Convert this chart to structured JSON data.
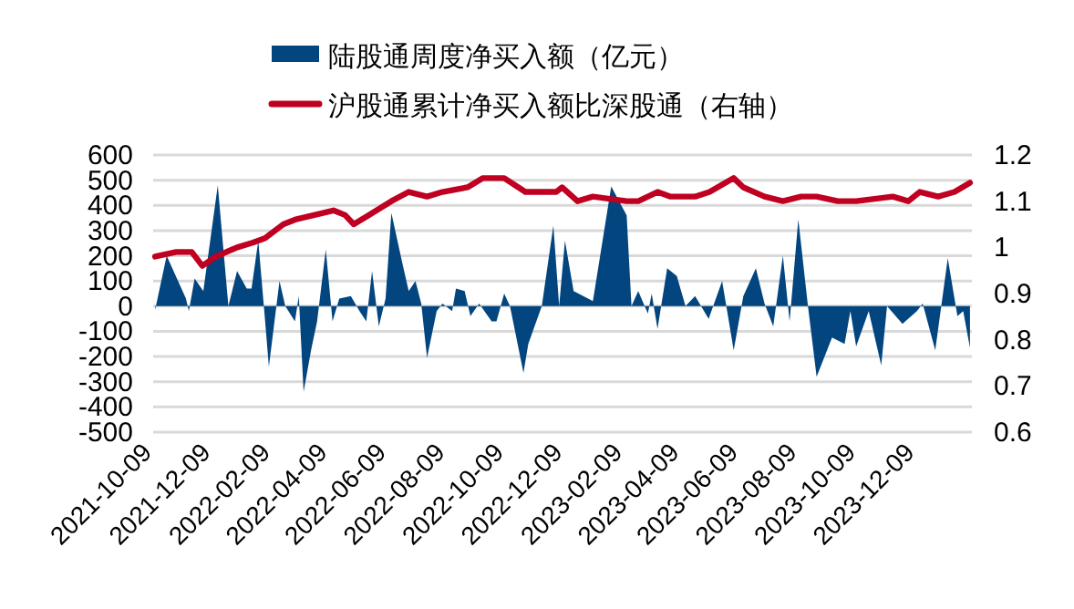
{
  "chart_data": {
    "type": "area",
    "legend": "top",
    "grid": "y",
    "line_style": "solid",
    "marker": "none",
    "xlim": [
      "2021-10-09",
      "2024-02-05"
    ],
    "xticks": [
      "2021-10-09",
      "2021-12-09",
      "2022-02-09",
      "2022-04-09",
      "2022-06-09",
      "2022-08-09",
      "2022-10-09",
      "2022-12-09",
      "2023-02-09",
      "2023-04-09",
      "2023-06-09",
      "2023-08-09",
      "2023-10-09",
      "2023-12-09"
    ],
    "ylim": [
      -500,
      600
    ],
    "yticks": [
      -500,
      -400,
      -300,
      -200,
      -100,
      0,
      100,
      200,
      300,
      400,
      500,
      600
    ],
    "y2lim": [
      0.6,
      1.2
    ],
    "y2ticks": [
      0.6,
      0.7,
      0.8,
      0.9,
      {
        "value": 1,
        "label": "1"
      },
      1.1,
      1.2
    ],
    "series": [
      {
        "name": "陆股通周度净买入额（亿元）",
        "color": "#02457f",
        "x": [
          "2021-10-11",
          "2021-10-23",
          "2021-11-12",
          "2021-11-15",
          "2021-11-21",
          "2021-11-30",
          "2021-12-15",
          "2021-12-26",
          "2022-01-04",
          "2022-01-14",
          "2022-01-19",
          "2022-01-26",
          "2022-02-01",
          "2022-02-06",
          "2022-02-17",
          "2022-02-23",
          "2022-03-05",
          "2022-03-09",
          "2022-03-14",
          "2022-03-22",
          "2022-03-28",
          "2022-04-06",
          "2022-04-13",
          "2022-04-20",
          "2022-05-02",
          "2022-05-11",
          "2022-05-18",
          "2022-05-24",
          "2022-05-31",
          "2022-06-07",
          "2022-06-13",
          "2022-06-25",
          "2022-07-01",
          "2022-07-08",
          "2022-07-14",
          "2022-07-20",
          "2022-07-30",
          "2022-08-05",
          "2022-08-15",
          "2022-08-19",
          "2022-08-28",
          "2022-09-03",
          "2022-09-12",
          "2022-09-25",
          "2022-09-30",
          "2022-10-08",
          "2022-10-14",
          "2022-10-28",
          "2022-11-02",
          "2022-11-16",
          "2022-11-28",
          "2022-12-04",
          "2022-12-10",
          "2022-12-19",
          "2023-01-08",
          "2023-01-27",
          "2023-02-12",
          "2023-02-17",
          "2023-02-24",
          "2023-03-06",
          "2023-03-10",
          "2023-03-16",
          "2023-03-26",
          "2023-04-05",
          "2023-04-14",
          "2023-04-24",
          "2023-05-08",
          "2023-05-22",
          "2023-06-03",
          "2023-06-13",
          "2023-06-26",
          "2023-07-05",
          "2023-07-14",
          "2023-07-24",
          "2023-07-31",
          "2023-08-09",
          "2023-08-19",
          "2023-08-28",
          "2023-09-13",
          "2023-09-26",
          "2023-10-02",
          "2023-10-08",
          "2023-10-21",
          "2023-11-03",
          "2023-11-09",
          "2023-11-25",
          "2023-12-10",
          "2023-12-16",
          "2023-12-29",
          "2024-01-11",
          "2024-01-21",
          "2024-01-27",
          "2024-02-03"
        ],
        "values": [
          -15,
          200,
          30,
          -20,
          110,
          60,
          480,
          0,
          140,
          70,
          70,
          260,
          -10,
          -240,
          100,
          0,
          -60,
          40,
          -340,
          -170,
          -60,
          225,
          -60,
          30,
          40,
          -20,
          -60,
          140,
          -80,
          30,
          370,
          160,
          60,
          100,
          10,
          -205,
          -20,
          10,
          -20,
          70,
          60,
          -40,
          10,
          -60,
          -60,
          50,
          0,
          -265,
          -150,
          0,
          320,
          0,
          260,
          60,
          20,
          475,
          360,
          0,
          60,
          -30,
          50,
          -90,
          150,
          120,
          0,
          40,
          -50,
          100,
          -175,
          40,
          150,
          10,
          -80,
          200,
          -60,
          345,
          0,
          -280,
          -125,
          -150,
          -20,
          -160,
          -20,
          -235,
          0,
          -70,
          -20,
          10,
          -175,
          190,
          -40,
          -20,
          -165
        ]
      },
      {
        "name": "沪股通累计净买入额比深股通（右轴）",
        "type": "line",
        "axis": "y2",
        "color": "#c00020",
        "x": [
          "2021-10-11",
          "2021-11-02",
          "2021-11-18",
          "2021-11-29",
          "2021-12-13",
          "2022-01-04",
          "2022-01-20",
          "2022-02-02",
          "2022-02-21",
          "2022-03-05",
          "2022-03-25",
          "2022-04-14",
          "2022-04-26",
          "2022-05-05",
          "2022-05-21",
          "2022-06-13",
          "2022-07-01",
          "2022-07-20",
          "2022-08-05",
          "2022-08-31",
          "2022-09-16",
          "2022-10-08",
          "2022-10-30",
          "2022-11-21",
          "2022-12-01",
          "2022-12-07",
          "2022-12-23",
          "2023-01-08",
          "2023-02-12",
          "2023-02-24",
          "2023-03-16",
          "2023-03-29",
          "2023-04-24",
          "2023-05-09",
          "2023-06-03",
          "2023-06-13",
          "2023-07-05",
          "2023-07-24",
          "2023-08-12",
          "2023-08-28",
          "2023-09-19",
          "2023-10-08",
          "2023-11-15",
          "2023-12-01",
          "2023-12-13",
          "2024-01-01",
          "2024-01-18",
          "2024-02-03"
        ],
        "values": [
          0.98,
          0.99,
          0.99,
          0.96,
          0.98,
          1.0,
          1.01,
          1.02,
          1.05,
          1.06,
          1.07,
          1.08,
          1.07,
          1.05,
          1.07,
          1.1,
          1.12,
          1.11,
          1.12,
          1.13,
          1.15,
          1.15,
          1.12,
          1.12,
          1.12,
          1.13,
          1.1,
          1.11,
          1.1,
          1.1,
          1.12,
          1.11,
          1.11,
          1.12,
          1.15,
          1.13,
          1.11,
          1.1,
          1.11,
          1.11,
          1.1,
          1.1,
          1.11,
          1.1,
          1.12,
          1.11,
          1.12,
          1.14
        ]
      }
    ]
  }
}
